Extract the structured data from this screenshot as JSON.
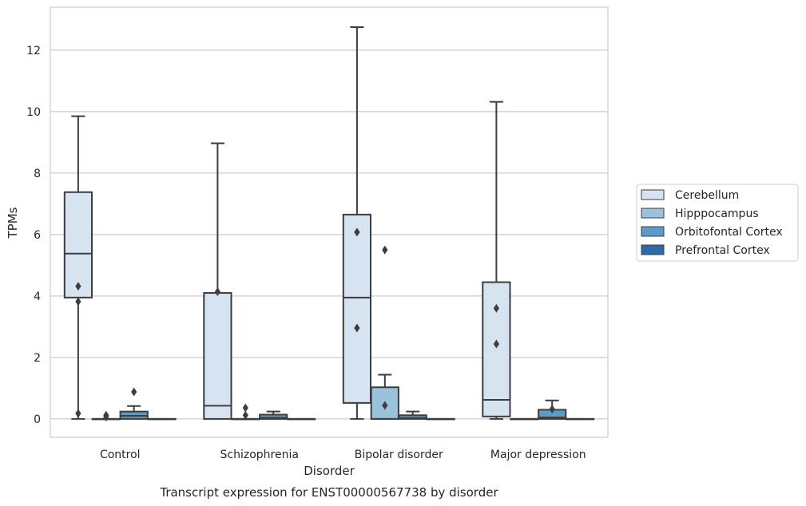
{
  "chart_data": {
    "type": "box",
    "caption": "Transcript expression for ENST00000567738 by disorder",
    "xlabel": "Disorder",
    "ylabel": "TPMs",
    "ylim": [
      -0.6,
      13.4
    ],
    "yticks": [
      "0",
      "2",
      "4",
      "6",
      "8",
      "10",
      "12"
    ],
    "grid": "horizontal",
    "legend_position": "right",
    "categories": [
      "Control",
      "Schizophrenia",
      "Bipolar disorder",
      "Major depression"
    ],
    "series": [
      {
        "name": "Cerebellum",
        "color": "#d6e4f2",
        "boxes": [
          {
            "min": 0,
            "q1": 3.95,
            "median": 5.38,
            "q3": 7.38,
            "max": 9.85,
            "outliers": [
              4.32,
              3.82,
              0.18
            ]
          },
          {
            "min": 0,
            "q1": 0,
            "median": 0.43,
            "q3": 4.1,
            "max": 8.97,
            "outliers": [
              4.14
            ]
          },
          {
            "min": 0,
            "q1": 0.52,
            "median": 3.95,
            "q3": 6.65,
            "max": 12.75,
            "outliers": [
              6.08,
              2.96
            ]
          },
          {
            "min": 0,
            "q1": 0.08,
            "median": 0.62,
            "q3": 4.45,
            "max": 10.32,
            "outliers": [
              3.6,
              2.44
            ]
          }
        ]
      },
      {
        "name": "Hipppocampus",
        "color": "#9ac2dd",
        "boxes": [
          {
            "min": 0,
            "q1": 0,
            "median": 0,
            "q3": 0,
            "max": 0,
            "outliers": [
              0.12,
              0.06
            ]
          },
          {
            "min": 0,
            "q1": 0,
            "median": 0,
            "q3": 0,
            "max": 0,
            "outliers": [
              0.36,
              0.12
            ]
          },
          {
            "min": 0,
            "q1": 0,
            "median": 0,
            "q3": 1.03,
            "max": 1.44,
            "outliers": [
              5.5,
              0.44
            ]
          },
          {
            "min": 0,
            "q1": 0,
            "median": 0,
            "q3": 0,
            "max": 0,
            "outliers": []
          }
        ]
      },
      {
        "name": "Orbitofontal Cortex",
        "color": "#5a9bc8",
        "boxes": [
          {
            "min": 0,
            "q1": 0,
            "median": 0.1,
            "q3": 0.24,
            "max": 0.42,
            "outliers": [
              0.88
            ]
          },
          {
            "min": 0,
            "q1": 0,
            "median": 0.04,
            "q3": 0.14,
            "max": 0.24,
            "outliers": []
          },
          {
            "min": 0,
            "q1": 0,
            "median": 0.03,
            "q3": 0.12,
            "max": 0.24,
            "outliers": []
          },
          {
            "min": 0,
            "q1": 0,
            "median": 0.05,
            "q3": 0.3,
            "max": 0.6,
            "outliers": [
              0.32
            ]
          }
        ]
      },
      {
        "name": "Prefrontal Cortex",
        "color": "#2b6ba8",
        "boxes": [
          {
            "min": 0,
            "q1": 0,
            "median": 0,
            "q3": 0,
            "max": 0,
            "outliers": []
          },
          {
            "min": 0,
            "q1": 0,
            "median": 0,
            "q3": 0,
            "max": 0,
            "outliers": []
          },
          {
            "min": 0,
            "q1": 0,
            "median": 0,
            "q3": 0,
            "max": 0,
            "outliers": []
          },
          {
            "min": 0,
            "q1": 0,
            "median": 0,
            "q3": 0,
            "max": 0,
            "outliers": []
          }
        ]
      }
    ]
  }
}
